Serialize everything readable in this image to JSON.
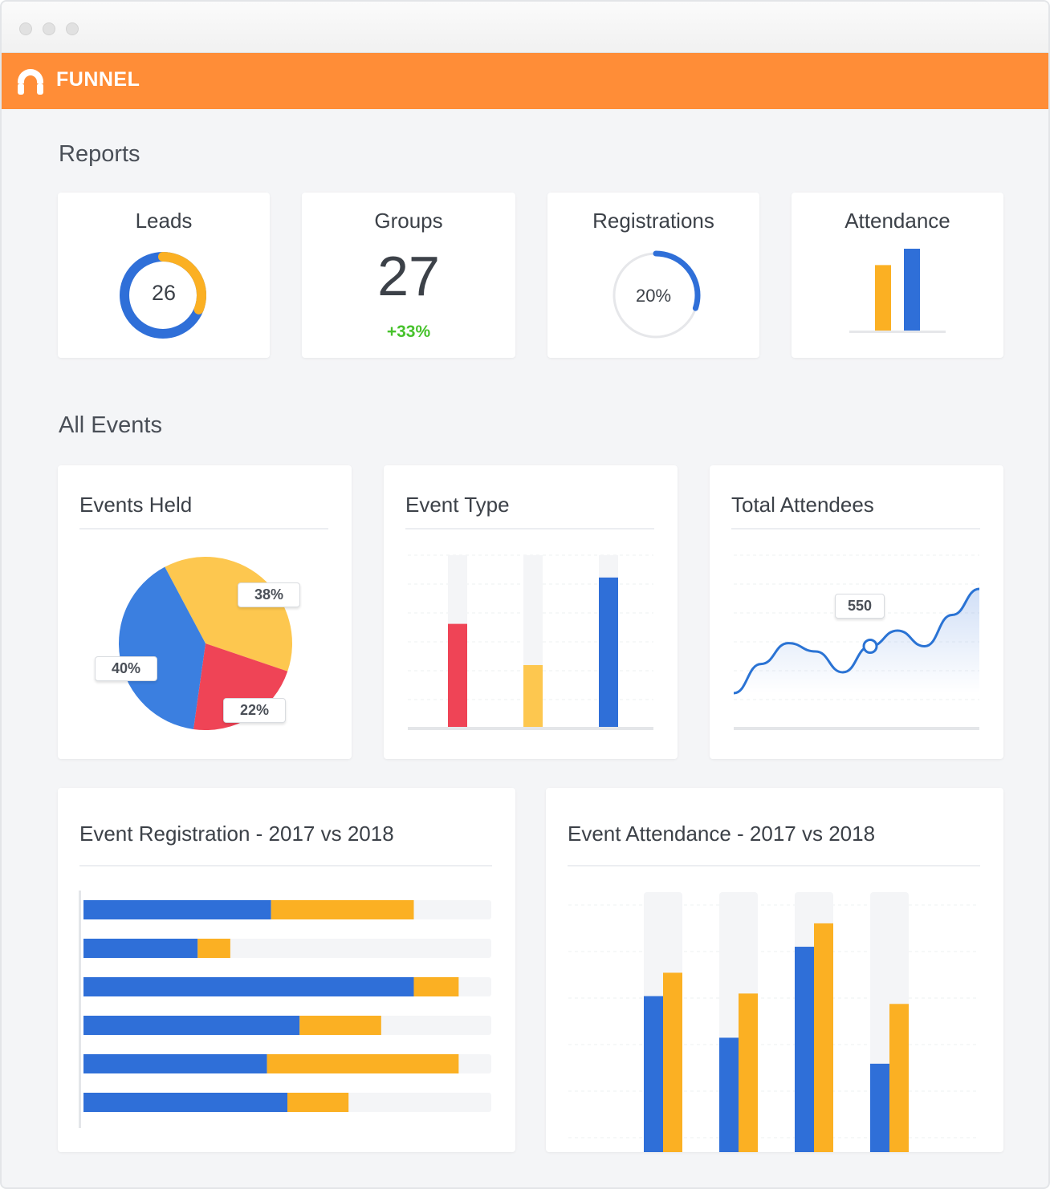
{
  "app": {
    "name": "FUNNEL"
  },
  "colors": {
    "brand": "#ff8d37",
    "blue": "#2f6fd8",
    "yellow": "#fbb023",
    "red": "#ef4456",
    "light_yellow": "#fdc74f",
    "green": "#47c22c"
  },
  "reports": {
    "title": "Reports",
    "leads": {
      "label": "Leads",
      "value": "26",
      "blue_fraction": 0.69,
      "yellow_fraction": 0.31
    },
    "groups": {
      "label": "Groups",
      "value": "27",
      "change": "+33%"
    },
    "registrations": {
      "label": "Registrations",
      "value": "20%",
      "fraction": 0.3
    },
    "attendance": {
      "label": "Attendance",
      "values": [
        0.8,
        1.0
      ]
    }
  },
  "all_events": {
    "title": "All Events",
    "events_held": {
      "title": "Events Held"
    },
    "event_type": {
      "title": "Event Type"
    },
    "total_attendees": {
      "title": "Total Attendees",
      "tooltip": "550"
    },
    "event_registration": {
      "title": "Event Registration - 2017 vs 2018"
    },
    "event_attendance": {
      "title": "Event Attendance - 2017 vs 2018"
    }
  },
  "chart_data": [
    {
      "type": "pie",
      "slices": [
        {
          "label": "38%",
          "value": 38,
          "color": "#fdc74f"
        },
        {
          "label": "22%",
          "value": 22,
          "color": "#ef4456"
        },
        {
          "label": "40%",
          "value": 40,
          "color": "#3b7fe0"
        }
      ]
    },
    {
      "type": "bar",
      "values": [
        0.6,
        0.36,
        0.87
      ],
      "colors": [
        "#ef4456",
        "#fdc74f",
        "#2f6fd8"
      ],
      "ylim": [
        0,
        1
      ]
    },
    {
      "type": "line",
      "y": [
        0.0,
        0.28,
        0.48,
        0.4,
        0.2,
        0.45,
        0.6,
        0.45,
        0.75,
        1.0
      ],
      "highlight": {
        "index": 5,
        "label": "550"
      },
      "ylim": [
        0,
        1
      ]
    },
    {
      "type": "bar",
      "orientation": "horizontal",
      "max": 1,
      "series": [
        {
          "values": [
            0.46,
            0.28,
            0.81,
            0.53,
            0.45,
            0.5
          ],
          "color": "#2f6fd8"
        },
        {
          "values": [
            0.35,
            0.08,
            0.11,
            0.2,
            0.47,
            0.15
          ],
          "color": "#fbb023"
        }
      ]
    },
    {
      "type": "bar",
      "ylim": [
        0,
        1
      ],
      "series": [
        {
          "values": [
            0.6,
            0.44,
            0.79,
            0.34
          ],
          "color": "#2f6fd8"
        },
        {
          "values": [
            0.69,
            0.61,
            0.88,
            0.57
          ],
          "color": "#fbb023"
        }
      ]
    }
  ]
}
